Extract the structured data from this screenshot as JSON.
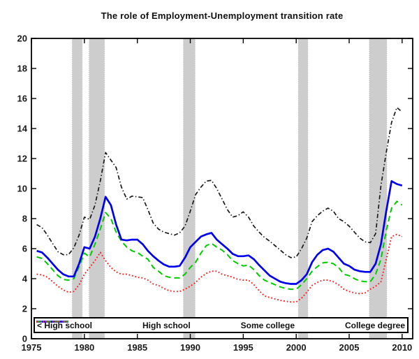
{
  "chart_data": {
    "type": "line",
    "title": "The role of Employment-Unemployment transition rate",
    "xlabel": "",
    "ylabel": "",
    "xlim": [
      1975,
      2011
    ],
    "ylim": [
      0,
      20
    ],
    "x_ticks": [
      1975,
      1980,
      1985,
      1990,
      1995,
      2000,
      2005,
      2010
    ],
    "y_ticks": [
      0,
      2,
      4,
      6,
      8,
      10,
      12,
      14,
      16,
      18,
      20
    ],
    "grid": false,
    "legend_position": "south-inside",
    "band_color": "#cdcdcd",
    "recession_bands": [
      [
        1978.85,
        1979.8
      ],
      [
        1980.45,
        1981.9
      ],
      [
        1989.35,
        1990.45
      ],
      [
        2000.2,
        2001.1
      ],
      [
        2006.9,
        2008.55
      ]
    ],
    "x_start": 1975.5,
    "x_step": 0.5,
    "series": [
      {
        "name": "< High school",
        "color": "#1a1a1a",
        "style": "dashdot",
        "values": [
          7.6,
          7.4,
          6.9,
          6.35,
          5.8,
          5.6,
          5.6,
          6.05,
          6.9,
          8.1,
          7.95,
          8.9,
          10.5,
          12.4,
          11.9,
          11.4,
          10.1,
          9.3,
          9.5,
          9.45,
          9.4,
          8.6,
          7.7,
          7.3,
          7.1,
          7.0,
          6.9,
          7.05,
          7.5,
          8.5,
          9.6,
          10.1,
          10.5,
          10.55,
          10.0,
          9.3,
          8.6,
          8.1,
          8.2,
          8.45,
          8.1,
          7.5,
          7.1,
          6.75,
          6.5,
          6.2,
          5.9,
          5.6,
          5.4,
          5.45,
          6.0,
          6.7,
          7.8,
          8.2,
          8.5,
          8.7,
          8.5,
          8.0,
          7.8,
          7.5,
          7.1,
          6.7,
          6.45,
          6.4,
          7.0,
          10.2,
          12.4,
          14.4,
          15.4,
          15.1
        ]
      },
      {
        "name": "High school",
        "color": "#0000ee",
        "style": "solid",
        "values": [
          5.85,
          5.75,
          5.4,
          5.0,
          4.6,
          4.3,
          4.15,
          4.15,
          5.0,
          6.1,
          6.0,
          6.8,
          8.0,
          9.45,
          8.9,
          7.6,
          6.6,
          6.55,
          6.6,
          6.6,
          6.3,
          5.85,
          5.5,
          5.2,
          4.95,
          4.8,
          4.8,
          4.85,
          5.4,
          6.1,
          6.45,
          6.8,
          6.95,
          7.05,
          6.6,
          6.3,
          6.0,
          5.65,
          5.5,
          5.5,
          5.55,
          5.3,
          4.9,
          4.55,
          4.2,
          4.0,
          3.8,
          3.7,
          3.65,
          3.65,
          3.9,
          4.3,
          5.1,
          5.6,
          5.9,
          6.0,
          5.8,
          5.4,
          5.0,
          4.85,
          4.6,
          4.5,
          4.45,
          4.45,
          5.0,
          6.3,
          8.5,
          10.5,
          10.3,
          10.2
        ]
      },
      {
        "name": "Some college",
        "color": "#00cc00",
        "style": "dashed",
        "values": [
          5.45,
          5.35,
          5.0,
          4.6,
          4.2,
          3.95,
          3.9,
          4.0,
          4.8,
          5.7,
          5.45,
          6.3,
          7.3,
          8.4,
          8.0,
          7.1,
          6.5,
          6.1,
          5.85,
          5.75,
          5.5,
          5.3,
          4.75,
          4.5,
          4.2,
          4.1,
          4.05,
          4.05,
          4.3,
          4.75,
          5.1,
          5.7,
          6.2,
          6.35,
          6.1,
          5.9,
          5.6,
          5.2,
          5.0,
          4.85,
          4.9,
          4.6,
          4.2,
          3.9,
          3.75,
          3.6,
          3.45,
          3.35,
          3.3,
          3.3,
          3.6,
          4.0,
          4.5,
          4.8,
          5.05,
          5.1,
          5.0,
          4.75,
          4.3,
          4.2,
          4.0,
          3.85,
          3.8,
          3.8,
          4.3,
          5.3,
          7.2,
          8.7,
          9.15,
          8.9
        ]
      },
      {
        "name": "College degree",
        "color": "#ff1a1a",
        "style": "dotted",
        "values": [
          4.3,
          4.25,
          4.1,
          3.8,
          3.5,
          3.25,
          3.1,
          3.15,
          3.6,
          4.3,
          4.75,
          5.2,
          5.75,
          5.2,
          4.75,
          4.45,
          4.3,
          4.3,
          4.2,
          4.1,
          4.05,
          3.9,
          3.65,
          3.55,
          3.35,
          3.2,
          3.15,
          3.15,
          3.3,
          3.5,
          3.75,
          4.1,
          4.35,
          4.5,
          4.5,
          4.3,
          4.2,
          4.1,
          3.95,
          3.9,
          3.9,
          3.6,
          3.2,
          2.85,
          2.75,
          2.65,
          2.55,
          2.5,
          2.45,
          2.45,
          2.7,
          3.1,
          3.55,
          3.75,
          3.9,
          3.9,
          3.8,
          3.6,
          3.3,
          3.15,
          3.05,
          3.0,
          3.05,
          3.3,
          3.5,
          3.8,
          5.3,
          6.8,
          6.95,
          6.8
        ]
      }
    ]
  }
}
